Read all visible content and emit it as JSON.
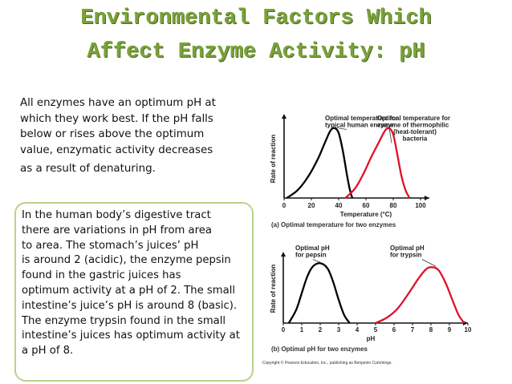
{
  "slide": {
    "title_line1": "Environmental Factors Which",
    "title_line2": "Affect Enzyme Activity: pH",
    "intro_lines": [
      "All enzymes have an optimum pH at",
      "which they work best.  If the pH falls",
      "below or rises above the optimum",
      "value, enzymatic activity decreases",
      "as a result of denaturing."
    ],
    "box_lines": [
      "In the human body’s digestive tract",
      "there are variations in pH from area",
      "to area.  The stomach’s juices’ pH",
      "is around 2 (acidic), the enzyme pepsin",
      "found in the gastric juices has",
      "optimum activity at a pH of 2.  The small",
      "intestine’s juice’s pH is around 8 (basic).",
      "The enzyme trypsin found in the small",
      "intestine’s juices has optimum activity at",
      "a pH of 8."
    ],
    "copyright": "Copyright © Pearson Education, Inc., publishing as Benjamin Cummings."
  },
  "colors": {
    "title": "#7aa23a",
    "black_curve": "#000000",
    "red_curve": "#e0102a",
    "box_border": "#b9d28a"
  },
  "chart_data": [
    {
      "type": "line",
      "caption": "(a) Optimal temperature for two enzymes",
      "xlabel": "Temperature (°C)",
      "ylabel": "Rate of reaction",
      "xlim": [
        0,
        120
      ],
      "xticks": [
        0,
        20,
        40,
        60,
        80,
        100
      ],
      "series": [
        {
          "name": "typical human enzyme",
          "color": "#000000",
          "x": [
            2,
            10,
            18,
            25,
            30,
            34,
            37,
            40,
            43,
            46,
            48,
            50
          ],
          "y": [
            0,
            0.1,
            0.28,
            0.5,
            0.7,
            0.85,
            0.88,
            0.82,
            0.6,
            0.3,
            0.12,
            0
          ]
        },
        {
          "name": "enzyme of thermophilic (heat-tolerant) bacteria",
          "color": "#e0102a",
          "x": [
            45,
            52,
            58,
            64,
            70,
            74,
            77,
            80,
            83,
            86,
            89,
            92
          ],
          "y": [
            0,
            0.12,
            0.3,
            0.52,
            0.72,
            0.85,
            0.88,
            0.8,
            0.55,
            0.28,
            0.1,
            0
          ]
        }
      ],
      "annotations": [
        {
          "text": [
            "Optimal temperature for",
            "typical human enzyme"
          ],
          "at_x": 37
        },
        {
          "text": [
            "Optimal temperature for",
            "enzyme of thermophilic",
            "(heat-tolerant)",
            "bacteria"
          ],
          "at_x": 77
        }
      ]
    },
    {
      "type": "line",
      "caption": "(b) Optimal pH for two enzymes",
      "xlabel": "pH",
      "ylabel": "Rate of reaction",
      "xlim": [
        0,
        10
      ],
      "xticks": [
        0,
        1,
        2,
        3,
        4,
        5,
        6,
        7,
        8,
        9,
        10
      ],
      "series": [
        {
          "name": "pepsin",
          "color": "#000000",
          "x": [
            0.3,
            0.7,
            1.0,
            1.3,
            1.6,
            2.0,
            2.4,
            2.7,
            3.0,
            3.3,
            3.6
          ],
          "y": [
            0,
            0.2,
            0.45,
            0.7,
            0.85,
            0.9,
            0.82,
            0.62,
            0.35,
            0.12,
            0
          ]
        },
        {
          "name": "trypsin",
          "color": "#e0102a",
          "x": [
            5.0,
            5.6,
            6.2,
            6.8,
            7.3,
            7.7,
            8.0,
            8.4,
            8.8,
            9.2,
            9.5,
            9.8
          ],
          "y": [
            0,
            0.08,
            0.22,
            0.45,
            0.66,
            0.8,
            0.84,
            0.8,
            0.6,
            0.32,
            0.12,
            0
          ]
        }
      ],
      "annotations": [
        {
          "text": [
            "Optimal pH",
            "for pepsin"
          ],
          "at_x": 2
        },
        {
          "text": [
            "Optimal pH",
            "for trypsin"
          ],
          "at_x": 8
        }
      ]
    }
  ]
}
